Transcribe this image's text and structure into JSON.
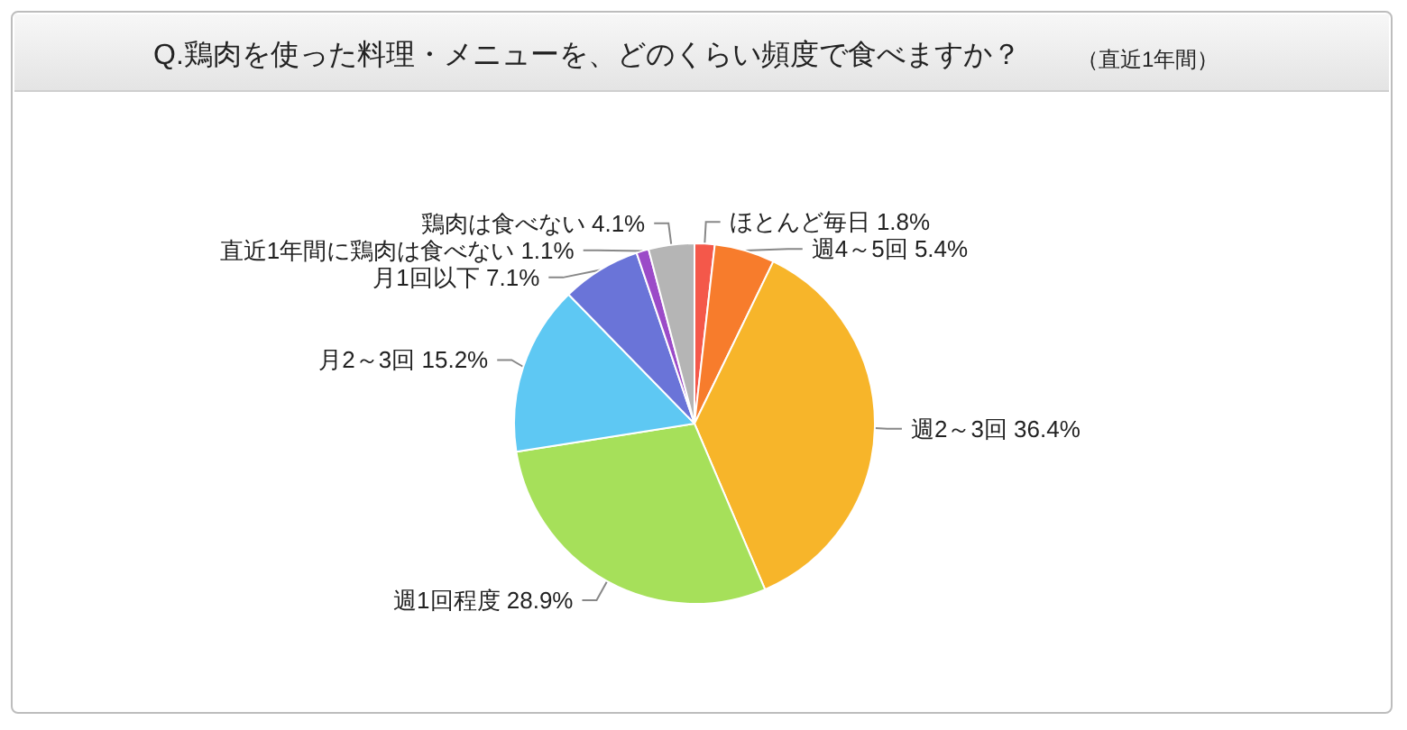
{
  "chart_data": {
    "type": "pie",
    "title": "Q.鶏肉を使った料理・メニューを、どのくらい頻度で食べますか？",
    "subtitle": "（直近1年間）",
    "categories": [
      "ほとんど毎日",
      "週4～5回",
      "週2～3回",
      "週1回程度",
      "月2～3回",
      "月1回以下",
      "直近1年間に鶏肉は食べない",
      "鶏肉は食べない"
    ],
    "values": [
      1.8,
      5.4,
      36.4,
      28.9,
      15.2,
      7.1,
      1.1,
      4.1
    ],
    "value_labels": [
      "1.8%",
      "5.4%",
      "36.4%",
      "28.9%",
      "15.2%",
      "7.1%",
      "1.1%",
      "4.1%"
    ],
    "colors": [
      "#f4584a",
      "#f77c2c",
      "#f7b52a",
      "#a6e05a",
      "#5ec8f3",
      "#6a74d8",
      "#9b4bc8",
      "#b5b5b5"
    ],
    "legend": false
  }
}
